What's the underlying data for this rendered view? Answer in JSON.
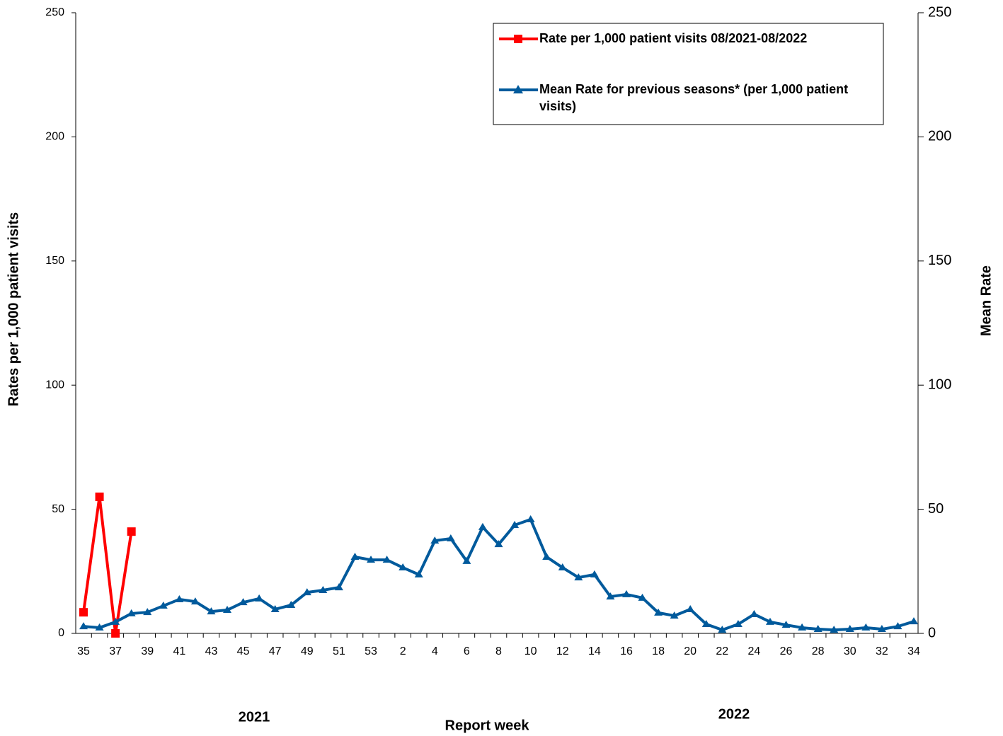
{
  "chart_data": {
    "type": "line",
    "x_label": "Report week",
    "y_label": "Rates per 1,000 patient visits",
    "y2_label": "Mean Rate",
    "year_labels": [
      "2021",
      "2022"
    ],
    "categories": [
      "35",
      null,
      "37",
      null,
      "39",
      null,
      "41",
      null,
      "43",
      null,
      "45",
      null,
      "47",
      null,
      "49",
      null,
      "51",
      null,
      "53",
      null,
      "2",
      null,
      "4",
      null,
      "6",
      null,
      "8",
      null,
      "10",
      null,
      "12",
      null,
      "14",
      null,
      "16",
      null,
      "18",
      null,
      "20",
      null,
      "22",
      null,
      "24",
      null,
      "26",
      null,
      "28",
      null,
      "30",
      null,
      "32",
      null,
      "34"
    ],
    "series": [
      {
        "name": "Rate per 1,000 patient visits 08/2021-08/2022",
        "color": "#ff0000",
        "marker": "square",
        "values": [
          8.5,
          55,
          0,
          41,
          null,
          null,
          null,
          null,
          null,
          null,
          null,
          null,
          null,
          null,
          null,
          null,
          null,
          null,
          null,
          null,
          null,
          null,
          null,
          null,
          null,
          null,
          null,
          null,
          null,
          null,
          null,
          null,
          null,
          null,
          null,
          null,
          null,
          null,
          null,
          null,
          null,
          null,
          null,
          null,
          null,
          null,
          null,
          null,
          null,
          null,
          null,
          null,
          null
        ]
      },
      {
        "name": "Mean Rate for previous seasons* (per 1,000 patient visits)",
        "color": "#005a9c",
        "marker": "triangle",
        "axis": "y2",
        "values": [
          2.8,
          2.3,
          4.6,
          8.0,
          8.5,
          11.1,
          13.7,
          12.8,
          8.8,
          9.4,
          12.5,
          14.0,
          9.7,
          11.4,
          16.5,
          17.4,
          18.5,
          30.8,
          29.6,
          29.6,
          26.5,
          23.7,
          37.3,
          38.2,
          29.1,
          42.8,
          35.9,
          43.6,
          45.9,
          30.8,
          26.5,
          22.5,
          23.7,
          14.8,
          15.7,
          14.3,
          8.3,
          7.1,
          9.7,
          3.7,
          1.4,
          3.7,
          7.7,
          4.6,
          3.4,
          2.3,
          1.7,
          1.4,
          1.7,
          2.3,
          1.7,
          2.8,
          4.8
        ]
      }
    ],
    "ylim": [
      0,
      250
    ],
    "yticks": [
      0,
      50,
      100,
      150,
      200,
      250
    ],
    "y2lim": [
      0,
      250
    ],
    "y2ticks": [
      0,
      50,
      100,
      150,
      200,
      250
    ],
    "grid": false,
    "legend": "top-right"
  }
}
